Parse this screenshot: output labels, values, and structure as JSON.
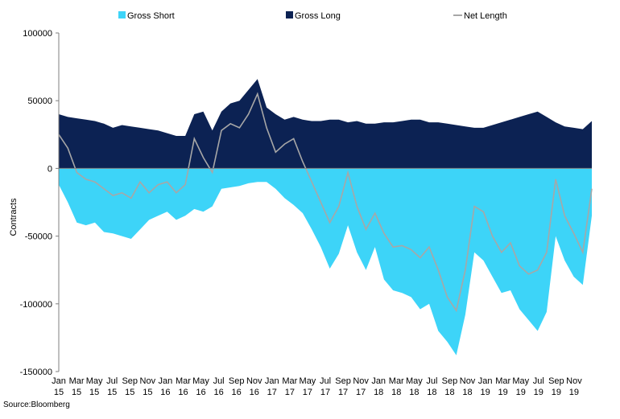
{
  "chart_data": {
    "type": "area",
    "title": "",
    "source": "Source:Bloomberg",
    "ylabel": "Contracts",
    "xlabel": "",
    "ylim": [
      -150000,
      100000
    ],
    "yticks": [
      100000,
      50000,
      0,
      -50000,
      -100000,
      -150000
    ],
    "ytick_labels": [
      "100000",
      "50000",
      "0",
      "-50000",
      "-100000",
      "-150000"
    ],
    "xticks": [
      {
        "m": "Jan",
        "y": "15"
      },
      {
        "m": "Mar",
        "y": "15"
      },
      {
        "m": "May",
        "y": "15"
      },
      {
        "m": "Jul",
        "y": "15"
      },
      {
        "m": "Sep",
        "y": "15"
      },
      {
        "m": "Nov",
        "y": "15"
      },
      {
        "m": "Jan",
        "y": "16"
      },
      {
        "m": "Mar",
        "y": "16"
      },
      {
        "m": "May",
        "y": "16"
      },
      {
        "m": "Jul",
        "y": "16"
      },
      {
        "m": "Sep",
        "y": "16"
      },
      {
        "m": "Nov",
        "y": "16"
      },
      {
        "m": "Jan",
        "y": "17"
      },
      {
        "m": "Mar",
        "y": "17"
      },
      {
        "m": "May",
        "y": "17"
      },
      {
        "m": "Jul",
        "y": "17"
      },
      {
        "m": "Sep",
        "y": "17"
      },
      {
        "m": "Nov",
        "y": "17"
      },
      {
        "m": "Jan",
        "y": "18"
      },
      {
        "m": "Mar",
        "y": "18"
      },
      {
        "m": "May",
        "y": "18"
      },
      {
        "m": "Jul",
        "y": "18"
      },
      {
        "m": "Sep",
        "y": "18"
      },
      {
        "m": "Nov",
        "y": "18"
      },
      {
        "m": "Jan",
        "y": "19"
      },
      {
        "m": "Mar",
        "y": "19"
      },
      {
        "m": "May",
        "y": "19"
      },
      {
        "m": "Jul",
        "y": "19"
      },
      {
        "m": "Sep",
        "y": "19"
      },
      {
        "m": "Nov",
        "y": "19"
      }
    ],
    "legend": {
      "placement": "top"
    },
    "grid": false,
    "x": [
      "2015-01",
      "2015-02",
      "2015-03",
      "2015-04",
      "2015-05",
      "2015-06",
      "2015-07",
      "2015-08",
      "2015-09",
      "2015-10",
      "2015-11",
      "2015-12",
      "2016-01",
      "2016-02",
      "2016-03",
      "2016-04",
      "2016-05",
      "2016-06",
      "2016-07",
      "2016-08",
      "2016-09",
      "2016-10",
      "2016-11",
      "2016-12",
      "2017-01",
      "2017-02",
      "2017-03",
      "2017-04",
      "2017-05",
      "2017-06",
      "2017-07",
      "2017-08",
      "2017-09",
      "2017-10",
      "2017-11",
      "2017-12",
      "2018-01",
      "2018-02",
      "2018-03",
      "2018-04",
      "2018-05",
      "2018-06",
      "2018-07",
      "2018-08",
      "2018-09",
      "2018-10",
      "2018-11",
      "2018-12",
      "2019-01",
      "2019-02",
      "2019-03",
      "2019-04",
      "2019-05",
      "2019-06",
      "2019-07",
      "2019-08",
      "2019-09",
      "2019-10",
      "2019-11",
      "2019-12"
    ],
    "series": [
      {
        "name": "Gross Short",
        "kind": "area",
        "color": "#3dd4f8",
        "values": [
          -12000,
          -25000,
          -40000,
          -42000,
          -40000,
          -47000,
          -48000,
          -50000,
          -52000,
          -45000,
          -38000,
          -35000,
          -32000,
          -38000,
          -35000,
          -30000,
          -32000,
          -28000,
          -15000,
          -14000,
          -13000,
          -11000,
          -10000,
          -10000,
          -15000,
          -22000,
          -27000,
          -33000,
          -45000,
          -58000,
          -74000,
          -63000,
          -42000,
          -62000,
          -75000,
          -58000,
          -82000,
          -90000,
          -92000,
          -95000,
          -104000,
          -100000,
          -120000,
          -128000,
          -138000,
          -108000,
          -62000,
          -68000,
          -80000,
          -92000,
          -90000,
          -104000,
          -112000,
          -120000,
          -106000,
          -50000,
          -68000,
          -80000,
          -86000,
          -35000
        ]
      },
      {
        "name": "Gross Long",
        "kind": "area",
        "color": "#0c2253",
        "values": [
          40000,
          38000,
          37000,
          36000,
          35000,
          33000,
          30000,
          32000,
          31000,
          30000,
          29000,
          28000,
          26000,
          24000,
          24000,
          40000,
          42000,
          28000,
          42000,
          48000,
          50000,
          58000,
          66000,
          45000,
          40000,
          36000,
          38000,
          36000,
          35000,
          35000,
          36000,
          36000,
          34000,
          35000,
          33000,
          33000,
          34000,
          34000,
          35000,
          36000,
          36000,
          34000,
          34000,
          33000,
          32000,
          31000,
          30000,
          30000,
          32000,
          34000,
          36000,
          38000,
          40000,
          42000,
          38000,
          34000,
          31000,
          30000,
          29000,
          35000
        ]
      },
      {
        "name": "Net Length",
        "kind": "line",
        "color": "#a7a7a7",
        "values": [
          25000,
          15000,
          -3000,
          -8000,
          -10000,
          -15000,
          -20000,
          -18000,
          -22000,
          -10000,
          -18000,
          -12000,
          -10000,
          -18000,
          -12000,
          22000,
          8000,
          -3000,
          28000,
          33000,
          30000,
          40000,
          55000,
          30000,
          12000,
          18000,
          22000,
          5000,
          -10000,
          -25000,
          -40000,
          -28000,
          -3000,
          -28000,
          -45000,
          -33000,
          -48000,
          -58000,
          -57000,
          -60000,
          -66000,
          -58000,
          -75000,
          -95000,
          -105000,
          -75000,
          -28000,
          -32000,
          -50000,
          -62000,
          -55000,
          -72000,
          -78000,
          -75000,
          -62000,
          -8000,
          -35000,
          -48000,
          -62000,
          -15000
        ]
      }
    ]
  }
}
